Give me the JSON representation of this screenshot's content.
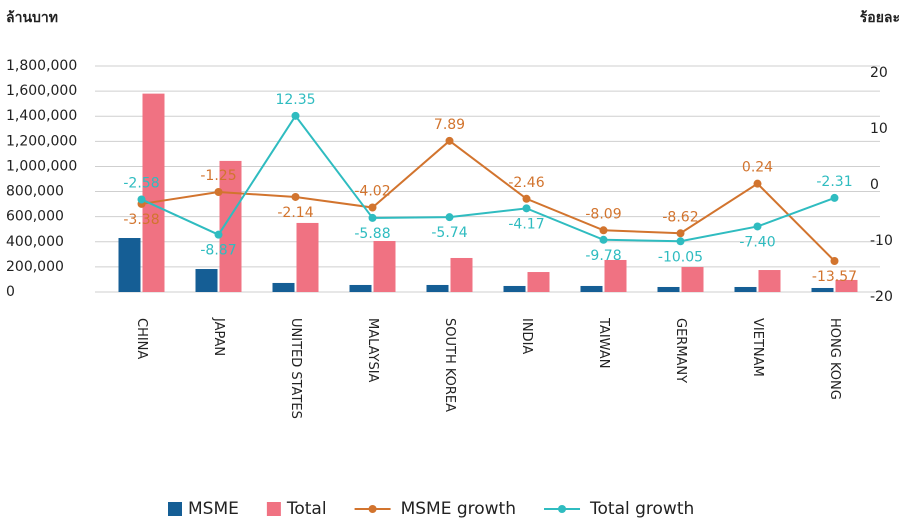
{
  "chart_data": {
    "type": "bar-line",
    "y_label": "ล้านบาท",
    "y2_label": "ร้อยละ",
    "categories": [
      "CHINA",
      "JAPAN",
      "UNITED STATES",
      "MALAYSIA",
      "SOUTH KOREA",
      "INDIA",
      "TAIWAN",
      "GERMANY",
      "VIETNAM",
      "HONG KONG"
    ],
    "series": [
      {
        "name": "MSME",
        "type": "bar",
        "color": "#155e95",
        "values": [
          430000,
          183000,
          72000,
          56000,
          56000,
          48000,
          48000,
          40000,
          40000,
          32000
        ]
      },
      {
        "name": "Total",
        "type": "bar",
        "color": "#f07282",
        "values": [
          1580000,
          1044000,
          550000,
          406000,
          271000,
          159000,
          255000,
          199000,
          175000,
          96000
        ]
      },
      {
        "name": "MSME growth",
        "type": "line",
        "axis": "y2",
        "color": "#d2742e",
        "values": [
          -3.38,
          -1.25,
          -2.14,
          -4.02,
          7.89,
          -2.46,
          -8.09,
          -8.62,
          0.24,
          -13.57
        ],
        "value_labels": [
          "-3.38",
          "-1.25",
          "-2.14",
          "-4.02",
          "7.89",
          "-2.46",
          "-8.09",
          "-8.62",
          "0.24",
          "-13.57"
        ]
      },
      {
        "name": "Total growth",
        "type": "line",
        "axis": "y2",
        "color": "#2fbcc0",
        "values": [
          -2.58,
          -8.87,
          12.35,
          -5.88,
          -5.74,
          -4.17,
          -9.78,
          -10.05,
          -7.4,
          -2.31
        ],
        "value_labels": [
          "-2.58",
          "-8.87",
          "12.35",
          "-5.88",
          "-5.74",
          "-4.17",
          "-9.78",
          "-10.05",
          "-7.40",
          "-2.31"
        ]
      }
    ],
    "ylim": [
      0,
      1800000
    ],
    "yticks": [
      0,
      {
        "value": 200000,
        "label": "200,000"
      },
      {
        "value": 400000,
        "label": "400,000"
      },
      {
        "value": 600000,
        "label": "600,000"
      },
      {
        "value": 800000,
        "label": "800,000"
      },
      {
        "value": 1000000,
        "label": "1,000,000"
      },
      {
        "value": 1200000,
        "label": "1,200,000"
      },
      {
        "value": 1400000,
        "label": "1,400,000"
      },
      {
        "value": 1600000,
        "label": "1,600,000"
      },
      {
        "value": 1800000,
        "label": "1,800,000"
      }
    ],
    "y2lim": [
      -20,
      20
    ],
    "y2ticks": [
      -20,
      -10,
      0,
      10,
      20
    ],
    "grid": true,
    "legend": "bottom"
  }
}
